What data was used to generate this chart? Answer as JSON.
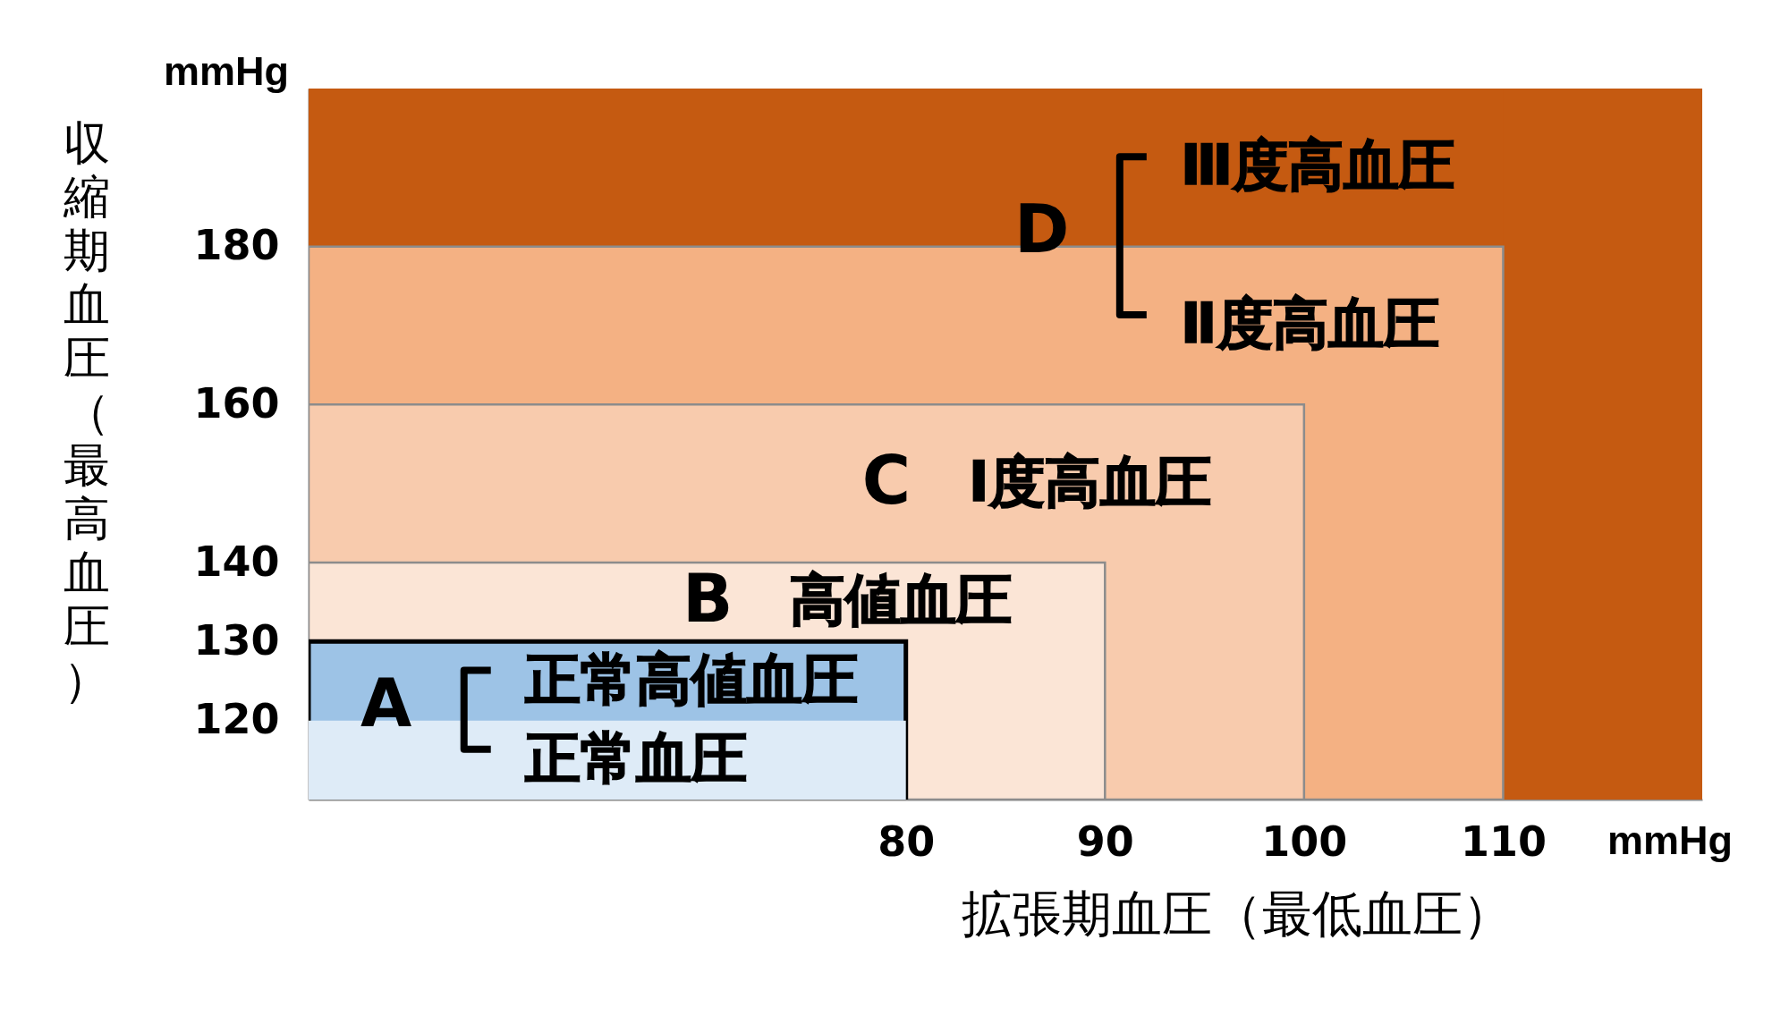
{
  "chart_data": {
    "type": "area",
    "xlabel": "拡張期血圧（最低血圧）",
    "ylabel": "収縮期血圧（最高血圧）",
    "xlim": [
      50,
      120
    ],
    "ylim": [
      110,
      200
    ],
    "xticks": [
      80,
      90,
      100,
      110
    ],
    "yticks": [
      120,
      130,
      140,
      160,
      180
    ],
    "bands": [
      {
        "axis": "y",
        "from": 180,
        "to": 200,
        "label": "Ⅲ度高血圧",
        "color": "#c55a11"
      },
      {
        "axis": "x",
        "from": 110,
        "to": 120,
        "color": "#c55a11"
      }
    ],
    "series": [
      {
        "name": "Ⅱ度高血圧",
        "color": "#f4b183",
        "x": [
          50,
          110
        ],
        "values": [
          180,
          180
        ]
      },
      {
        "name": "Ⅰ度高血圧",
        "color": "#f8cbad",
        "x": [
          50,
          100
        ],
        "values": [
          160,
          160
        ]
      },
      {
        "name": "高値血圧",
        "color": "#fbe5d6",
        "x": [
          50,
          90
        ],
        "values": [
          140,
          140
        ]
      },
      {
        "name": "正常高値血圧",
        "color": "#9dc3e6",
        "x": [
          50,
          80
        ],
        "values": [
          130,
          130
        ]
      },
      {
        "name": "正常血圧",
        "color": "#deebf7",
        "x": [
          50,
          80
        ],
        "values": [
          120,
          120
        ]
      }
    ],
    "annotations": [
      "mmHg",
      "D",
      "C",
      "B",
      "A",
      "mmHg"
    ]
  }
}
